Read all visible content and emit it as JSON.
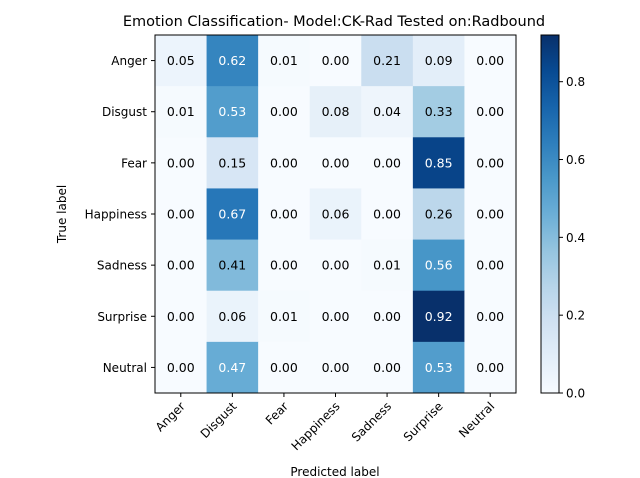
{
  "chart_data": {
    "type": "heatmap",
    "title": "Emotion Classification- Model:CK-Rad Tested on:Radbound",
    "xlabel": "Predicted label",
    "ylabel": "True label",
    "x_categories": [
      "Anger",
      "Disgust",
      "Fear",
      "Happiness",
      "Sadness",
      "Surprise",
      "Neutral"
    ],
    "y_categories": [
      "Anger",
      "Disgust",
      "Fear",
      "Happiness",
      "Sadness",
      "Surprise",
      "Neutral"
    ],
    "values": [
      [
        0.05,
        0.62,
        0.01,
        0.0,
        0.21,
        0.09,
        0.0
      ],
      [
        0.01,
        0.53,
        0.0,
        0.08,
        0.04,
        0.33,
        0.0
      ],
      [
        0.0,
        0.15,
        0.0,
        0.0,
        0.0,
        0.85,
        0.0
      ],
      [
        0.0,
        0.67,
        0.0,
        0.06,
        0.0,
        0.26,
        0.0
      ],
      [
        0.0,
        0.41,
        0.0,
        0.0,
        0.01,
        0.56,
        0.0
      ],
      [
        0.0,
        0.06,
        0.01,
        0.0,
        0.0,
        0.92,
        0.0
      ],
      [
        0.0,
        0.47,
        0.0,
        0.0,
        0.0,
        0.53,
        0.0
      ]
    ],
    "colormap": "Blues",
    "color_range": [
      0,
      0.92
    ],
    "colorbar_ticks": [
      "0.0",
      "0.2",
      "0.4",
      "0.6",
      "0.8"
    ],
    "colorbar_tick_values": [
      0.0,
      0.2,
      0.4,
      0.6,
      0.8
    ],
    "value_format": "2 decimals",
    "text_color_threshold": 0.46,
    "x_tick_rotation_deg": 45
  }
}
